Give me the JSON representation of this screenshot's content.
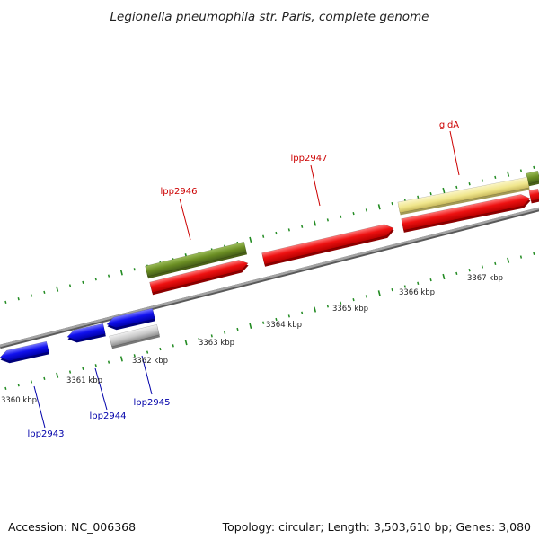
{
  "title": "Legionella pneumophila str. Paris, complete genome",
  "footer": {
    "accession": "Accession: NC_006368",
    "summary": "Topology: circular; Length: 3,503,610 bp; Genes: 3,080"
  },
  "colors": {
    "forward_gene": "#ee1111",
    "reverse_gene": "#1111ee",
    "gray_gene": "#c8c8c8",
    "olive_feature": "#6b8e23",
    "khaki_feature": "#f0e68c",
    "tick": "#228b22",
    "backbone": "#808080",
    "forward_label": "#cc0000",
    "reverse_label": "#0000aa"
  },
  "tick_labels": [
    "3360 kbp",
    "3361 kbp",
    "3362 kbp",
    "3363 kbp",
    "3364 kbp",
    "3365 kbp",
    "3366 kbp",
    "3367 kbp"
  ],
  "gene_labels": {
    "forward": [
      "lpp2946",
      "lpp2947",
      "gidA"
    ],
    "reverse": [
      "lpp2943",
      "lpp2944",
      "lpp2945"
    ]
  }
}
